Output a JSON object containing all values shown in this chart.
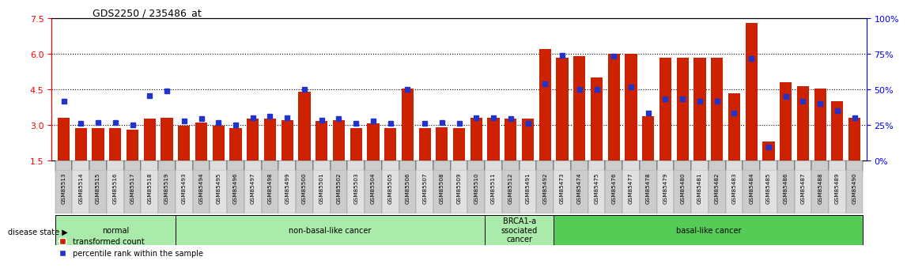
{
  "title": "GDS2250 / 235486_at",
  "samples": [
    "GSM85513",
    "GSM85514",
    "GSM85515",
    "GSM85516",
    "GSM85517",
    "GSM85518",
    "GSM85519",
    "GSM85493",
    "GSM85494",
    "GSM85495",
    "GSM85496",
    "GSM85497",
    "GSM85498",
    "GSM85499",
    "GSM85500",
    "GSM85501",
    "GSM85502",
    "GSM85503",
    "GSM85504",
    "GSM85505",
    "GSM85506",
    "GSM85507",
    "GSM85508",
    "GSM85509",
    "GSM85510",
    "GSM85511",
    "GSM85512",
    "GSM85491",
    "GSM85492",
    "GSM85473",
    "GSM85474",
    "GSM85475",
    "GSM85476",
    "GSM85477",
    "GSM85478",
    "GSM85479",
    "GSM85480",
    "GSM85481",
    "GSM85482",
    "GSM85483",
    "GSM85484",
    "GSM85485",
    "GSM85486",
    "GSM85487",
    "GSM85488",
    "GSM85489",
    "GSM85490"
  ],
  "bar_values": [
    3.3,
    2.85,
    2.85,
    2.85,
    2.8,
    3.25,
    3.3,
    2.95,
    3.1,
    2.95,
    2.85,
    3.25,
    3.25,
    3.2,
    4.4,
    3.15,
    3.2,
    2.85,
    3.05,
    2.85,
    4.55,
    2.85,
    2.9,
    2.85,
    3.3,
    3.3,
    3.25,
    3.25,
    6.2,
    5.85,
    5.9,
    5.0,
    6.0,
    6.0,
    3.35,
    5.85,
    5.85,
    5.85,
    5.85,
    4.35,
    7.3,
    2.3,
    4.8,
    4.65,
    4.55,
    4.0,
    3.3
  ],
  "dot_values": [
    4.0,
    3.05,
    3.1,
    3.1,
    3.0,
    4.25,
    4.45,
    3.15,
    3.25,
    3.1,
    3.0,
    3.3,
    3.35,
    3.3,
    4.5,
    3.2,
    3.25,
    3.05,
    3.15,
    3.05,
    4.5,
    3.05,
    3.1,
    3.05,
    3.3,
    3.3,
    3.25,
    3.05,
    4.75,
    5.95,
    4.5,
    4.5,
    5.9,
    4.6,
    3.5,
    4.1,
    4.1,
    4.0,
    4.0,
    3.5,
    5.8,
    2.05,
    4.2,
    4.0,
    3.9,
    3.6,
    3.3
  ],
  "groups": [
    {
      "label": "normal",
      "start": 0,
      "end": 7,
      "color": "#c8f0c8"
    },
    {
      "label": "non-basal-like cancer",
      "start": 7,
      "end": 25,
      "color": "#c8f0c8"
    },
    {
      "label": "BRCA1-a\nssociated\ncancer",
      "start": 25,
      "end": 29,
      "color": "#c8f0c8"
    },
    {
      "label": "basal-like cancer",
      "start": 29,
      "end": 47,
      "color": "#90e090"
    }
  ],
  "ylim_left": [
    1.5,
    7.5
  ],
  "ylim_right": [
    0,
    100
  ],
  "yticks_left": [
    1.5,
    3.0,
    4.5,
    6.0,
    7.5
  ],
  "yticks_right": [
    0,
    25,
    50,
    75,
    100
  ],
  "bar_color": "#cc2200",
  "dot_color": "#2233cc",
  "dotted_lines": [
    3.0,
    4.5,
    6.0
  ],
  "legend_items": [
    "transformed count",
    "percentile rank within the sample"
  ],
  "disease_state_label": "disease state"
}
